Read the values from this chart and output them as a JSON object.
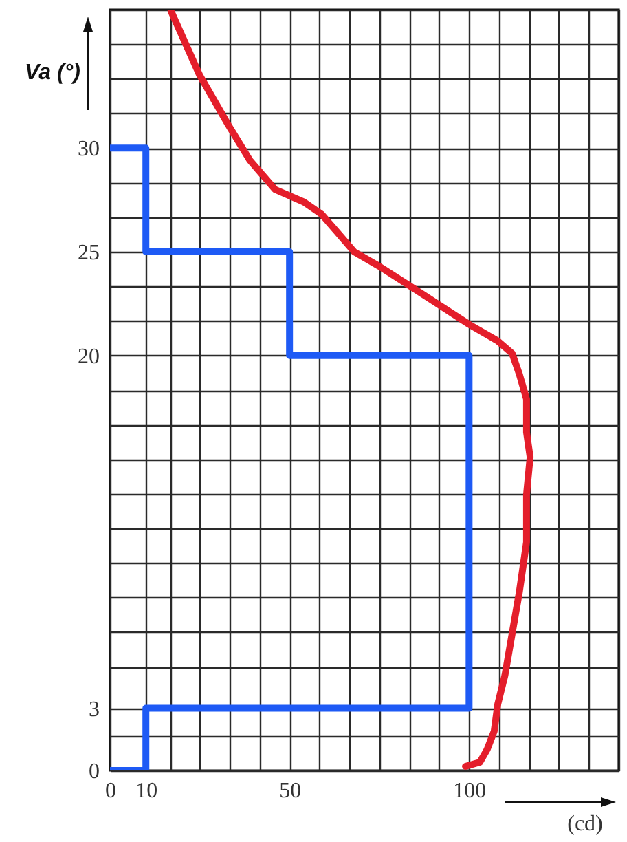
{
  "chart_data": {
    "type": "line",
    "xlabel": "(cd)",
    "ylabel": "Va (°)",
    "xlim": [
      0,
      141.67
    ],
    "ylim": [
      0,
      36.67
    ],
    "xticks": [
      0,
      10,
      {
        "value": 16.67,
        "label": null
      },
      {
        "value": 25,
        "label": null
      },
      {
        "value": 33.33,
        "label": null
      },
      {
        "value": 41.67,
        "label": null
      },
      50,
      {
        "value": 58.33,
        "label": null
      },
      {
        "value": 66.67,
        "label": null
      },
      {
        "value": 75,
        "label": null
      },
      {
        "value": 83.33,
        "label": null
      },
      {
        "value": 91.67,
        "label": null
      },
      100,
      {
        "value": 108.33,
        "label": null
      },
      {
        "value": 116.67,
        "label": null
      },
      {
        "value": 125,
        "label": null
      },
      {
        "value": 133.33,
        "label": null
      },
      {
        "value": 141.67,
        "label": null
      }
    ],
    "yticks": [
      0,
      {
        "value": 1.67,
        "label": null
      },
      3,
      {
        "value": 5,
        "label": null
      },
      {
        "value": 6.67,
        "label": null
      },
      {
        "value": 8.33,
        "label": null
      },
      {
        "value": 10,
        "label": null
      },
      {
        "value": 11.67,
        "label": null
      },
      {
        "value": 13.33,
        "label": null
      },
      {
        "value": 15,
        "label": null
      },
      {
        "value": 16.67,
        "label": null
      },
      {
        "value": 18.33,
        "label": null
      },
      20,
      {
        "value": 21.67,
        "label": null
      },
      {
        "value": 23.33,
        "label": null
      },
      25,
      {
        "value": 26.67,
        "label": null
      },
      {
        "value": 28.33,
        "label": null
      },
      30,
      {
        "value": 31.67,
        "label": null
      },
      {
        "value": 33.33,
        "label": null
      },
      {
        "value": 35,
        "label": null
      },
      {
        "value": 36.67,
        "label": null
      }
    ],
    "grid": true,
    "series": [
      {
        "color": "#1e5af5",
        "x": [
          0,
          10,
          10,
          100,
          100,
          50,
          50,
          10,
          10,
          0
        ],
        "values": [
          0,
          0,
          3,
          3,
          20,
          20,
          25,
          25,
          30,
          30
        ]
      },
      {
        "color": "#e41e2b",
        "x": [
          17,
          25,
          33,
          39,
          46,
          54,
          59,
          63,
          68,
          75,
          84,
          92,
          100,
          108,
          112,
          114,
          116,
          116,
          117,
          116,
          116,
          114,
          112,
          110,
          108,
          107,
          105,
          103,
          99
        ],
        "values": [
          36.6,
          33.5,
          31.1,
          29.4,
          28.0,
          27.4,
          26.8,
          26.0,
          25.0,
          24.3,
          23.3,
          22.4,
          21.5,
          20.7,
          20.1,
          19.1,
          17.9,
          16.3,
          15.1,
          13.3,
          11.0,
          8.6,
          6.6,
          4.6,
          3.2,
          1.9,
          1.0,
          0.4,
          0.2
        ]
      }
    ]
  }
}
